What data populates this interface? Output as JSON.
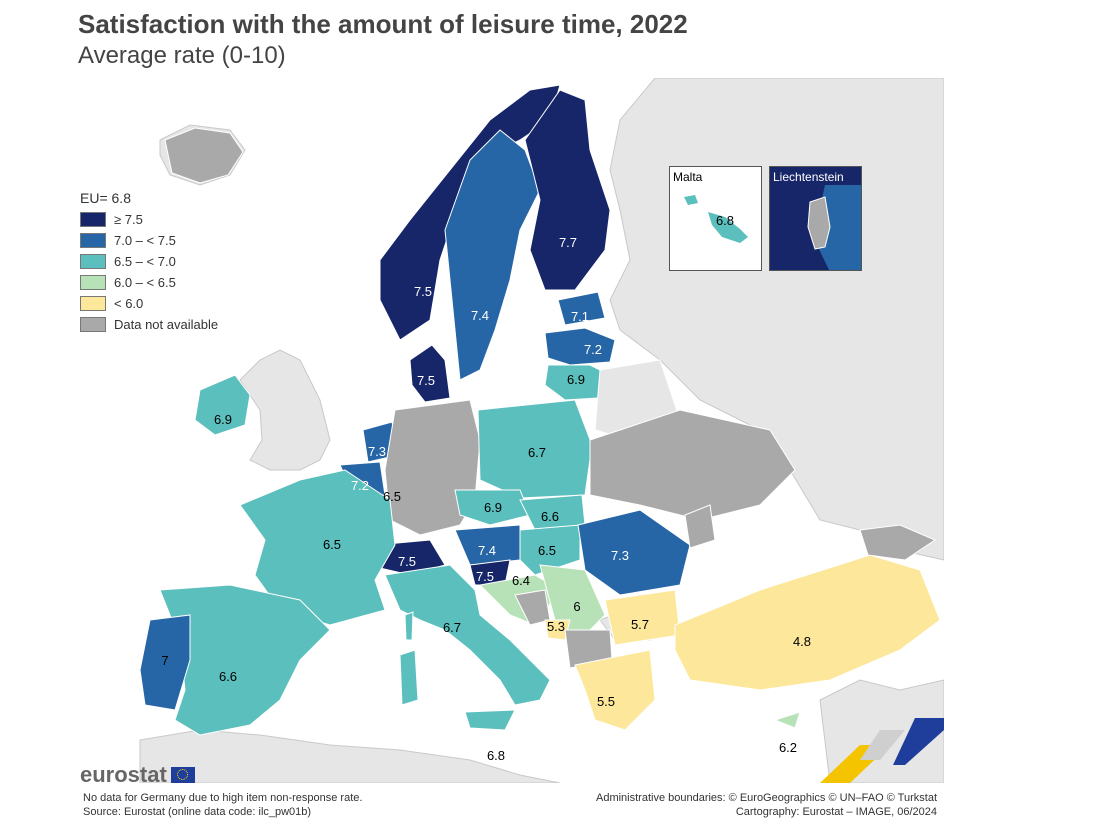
{
  "title": "Satisfaction with the amount of leisure time, 2022",
  "subtitle": "Average rate (0-10)",
  "legend": {
    "eu_label": "EU= 6.8",
    "classes": [
      {
        "label": "≥ 7.5",
        "color": "#172668"
      },
      {
        "label": "7.0 – < 7.5",
        "color": "#2766a6"
      },
      {
        "label": "6.5 – < 7.0",
        "color": "#5bbfbd"
      },
      {
        "label": "6.0 – < 6.5",
        "color": "#b7e2b8"
      },
      {
        "label": "< 6.0",
        "color": "#fde79a"
      },
      {
        "label": "Data not available",
        "color": "#a9a9a9"
      }
    ]
  },
  "countries": [
    {
      "name": "Norway",
      "value": "7.5"
    },
    {
      "name": "Sweden",
      "value": "7.4"
    },
    {
      "name": "Finland",
      "value": "7.7"
    },
    {
      "name": "Estonia",
      "value": "7.1"
    },
    {
      "name": "Latvia",
      "value": "7.2"
    },
    {
      "name": "Lithuania",
      "value": "6.9"
    },
    {
      "name": "Denmark",
      "value": "7.5"
    },
    {
      "name": "Ireland",
      "value": "6.9"
    },
    {
      "name": "Netherlands",
      "value": "7.3"
    },
    {
      "name": "Belgium",
      "value": "7.2"
    },
    {
      "name": "Luxembourg",
      "value": "6.5"
    },
    {
      "name": "Poland",
      "value": "6.7"
    },
    {
      "name": "Czechia",
      "value": "6.9"
    },
    {
      "name": "Slovakia",
      "value": "6.6"
    },
    {
      "name": "France",
      "value": "6.5"
    },
    {
      "name": "Switzerland",
      "value": "7.5"
    },
    {
      "name": "Austria",
      "value": "7.4"
    },
    {
      "name": "Hungary",
      "value": "6.5"
    },
    {
      "name": "Romania",
      "value": "7.3"
    },
    {
      "name": "Slovenia",
      "value": "7.5"
    },
    {
      "name": "Croatia",
      "value": "6.4"
    },
    {
      "name": "Serbia",
      "value": "6"
    },
    {
      "name": "Montenegro",
      "value": "5.3"
    },
    {
      "name": "Bulgaria",
      "value": "5.7"
    },
    {
      "name": "Italy",
      "value": "6.7"
    },
    {
      "name": "Portugal",
      "value": "7"
    },
    {
      "name": "Spain",
      "value": "6.6"
    },
    {
      "name": "Greece",
      "value": "5.5"
    },
    {
      "name": "Turkey",
      "value": "4.8"
    },
    {
      "name": "Malta",
      "value": "6.8"
    },
    {
      "name": "Cyprus",
      "value": "6.2"
    }
  ],
  "insets": [
    {
      "name": "Malta",
      "value": "6.8"
    },
    {
      "name": "Liechtenstein"
    }
  ],
  "brand": "eurostat",
  "footnote_left": [
    "No data for Germany due to high item non-response rate.",
    "Source: Eurostat (online data code: ilc_pw01b)"
  ],
  "footnote_right": [
    "Administrative boundaries: © EuroGeographics © UN–FAO © Turkstat",
    "Cartography: Eurostat – IMAGE, 06/2024"
  ]
}
